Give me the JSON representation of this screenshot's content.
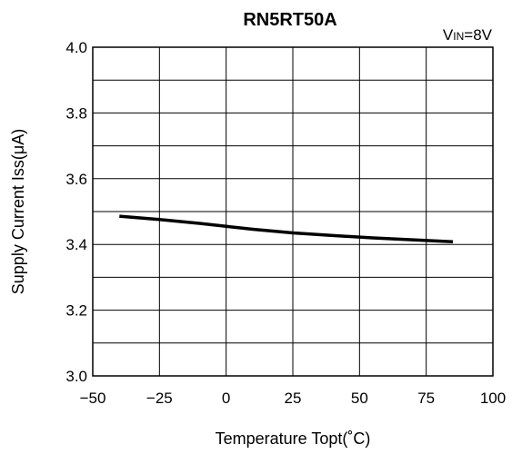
{
  "chart_data": {
    "type": "line",
    "title": "RN5RT50A",
    "condition": {
      "main": "V",
      "sub": "IN",
      "rest": "=8V"
    },
    "xlabel": "Temperature Topt(˚C)",
    "ylabel": "Supply Current Iss(μA)",
    "xlim": [
      -50,
      100
    ],
    "ylim": [
      3.0,
      4.0
    ],
    "xticks": [
      -50,
      -25,
      0,
      25,
      50,
      75,
      100
    ],
    "xtick_labels": [
      "−50",
      "−25",
      "0",
      "25",
      "50",
      "75",
      "100"
    ],
    "yticks": [
      3.0,
      3.1,
      3.2,
      3.3,
      3.4,
      3.5,
      3.6,
      3.7,
      3.8,
      3.9,
      4.0
    ],
    "ytick_labels": [
      "3.0",
      "",
      "3.2",
      "",
      "3.4",
      "",
      "3.6",
      "",
      "3.8",
      "",
      "4.0"
    ],
    "grid": true,
    "series": [
      {
        "x": [
          -40,
          -25,
          -10,
          0,
          10,
          25,
          40,
          55,
          70,
          85
        ],
        "y": [
          3.486,
          3.476,
          3.464,
          3.455,
          3.446,
          3.435,
          3.427,
          3.42,
          3.414,
          3.408
        ]
      }
    ]
  }
}
